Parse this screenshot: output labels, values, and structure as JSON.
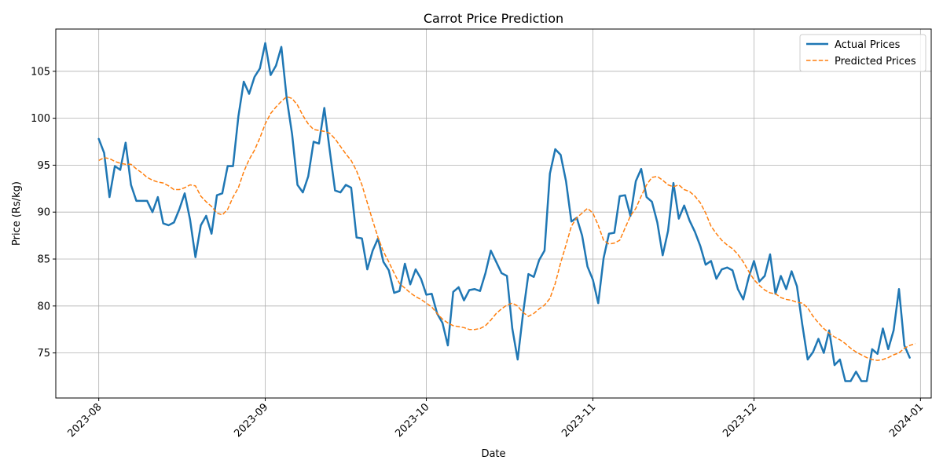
{
  "chart_data": {
    "type": "line",
    "title": "Carrot Price Prediction",
    "xlabel": "Date",
    "ylabel": "Price (Rs/kg)",
    "xlim": [
      "2023-07-24",
      "2024-01-03"
    ],
    "ylim": [
      70.2,
      109.5
    ],
    "grid": true,
    "legend_position": "top-right",
    "x_ticks": [
      "2023-08",
      "2023-09",
      "2023-10",
      "2023-11",
      "2023-12",
      "2024-01"
    ],
    "x_tick_dates": [
      "2023-08-01",
      "2023-09-01",
      "2023-10-01",
      "2023-11-01",
      "2023-12-01",
      "2024-01-01"
    ],
    "y_ticks": [
      75,
      80,
      85,
      90,
      95,
      100,
      105
    ],
    "start_date": "2023-08-01",
    "series": [
      {
        "name": "Actual Prices",
        "style": "solid",
        "color": "#1f77b4",
        "values": [
          97.8,
          96.3,
          91.6,
          94.9,
          94.5,
          97.4,
          92.9,
          91.2,
          91.2,
          91.2,
          90.0,
          91.6,
          88.8,
          88.6,
          88.9,
          90.3,
          92.0,
          89.2,
          85.2,
          88.6,
          89.6,
          87.7,
          91.8,
          92.0,
          94.9,
          94.9,
          100.2,
          103.9,
          102.6,
          104.4,
          105.3,
          108.0,
          104.6,
          105.6,
          107.6,
          102.1,
          98.3,
          92.9,
          92.1,
          93.8,
          97.5,
          97.3,
          101.1,
          96.6,
          92.3,
          92.1,
          92.9,
          92.6,
          87.3,
          87.2,
          83.9,
          85.9,
          87.2,
          84.7,
          83.8,
          81.4,
          81.6,
          84.5,
          82.3,
          83.9,
          82.9,
          81.2,
          81.3,
          79.2,
          78.2,
          75.8,
          81.5,
          82.0,
          80.6,
          81.7,
          81.8,
          81.6,
          83.5,
          85.9,
          84.7,
          83.5,
          83.2,
          77.6,
          74.3,
          79.2,
          83.4,
          83.1,
          84.9,
          85.9,
          94.1,
          96.7,
          96.1,
          93.3,
          89.0,
          89.4,
          87.5,
          84.2,
          82.8,
          80.3,
          85.1,
          87.7,
          87.8,
          91.7,
          91.8,
          89.6,
          93.3,
          94.6,
          91.6,
          91.1,
          88.9,
          85.4,
          88.0,
          93.1,
          89.3,
          90.7,
          89.1,
          87.9,
          86.4,
          84.4,
          84.8,
          82.9,
          83.9,
          84.1,
          83.8,
          81.8,
          80.7,
          83.0,
          84.8,
          82.6,
          83.2,
          85.5,
          81.3,
          83.2,
          81.8,
          83.7,
          82.1,
          78.0,
          74.3,
          75.1,
          76.5,
          75.0,
          77.4,
          73.7,
          74.3,
          72.0,
          72.0,
          73.0,
          72.0,
          72.0,
          75.4,
          74.9,
          77.6,
          75.4,
          77.4,
          81.8,
          75.8,
          74.5
        ]
      },
      {
        "name": "Predicted Prices",
        "style": "dashed",
        "color": "#ff7f0e",
        "values": [
          95.5,
          95.8,
          95.7,
          95.4,
          95.2,
          95.1,
          95.1,
          94.6,
          94.2,
          93.7,
          93.4,
          93.2,
          93.1,
          92.8,
          92.4,
          92.4,
          92.6,
          92.9,
          92.8,
          91.7,
          91.1,
          90.6,
          89.9,
          89.7,
          90.3,
          91.6,
          92.6,
          94.3,
          95.6,
          96.6,
          97.9,
          99.4,
          100.5,
          101.2,
          101.8,
          102.3,
          102.1,
          101.4,
          100.3,
          99.4,
          98.8,
          98.7,
          98.6,
          98.4,
          97.8,
          97.0,
          96.2,
          95.5,
          94.4,
          92.9,
          91.0,
          89.1,
          87.3,
          85.8,
          84.7,
          83.5,
          82.4,
          81.9,
          81.4,
          81.0,
          80.7,
          80.3,
          79.9,
          79.2,
          78.6,
          78.2,
          77.9,
          77.8,
          77.7,
          77.5,
          77.5,
          77.6,
          77.9,
          78.5,
          79.2,
          79.7,
          80.1,
          80.3,
          80.0,
          79.3,
          78.9,
          79.2,
          79.7,
          80.1,
          80.8,
          82.4,
          84.6,
          86.5,
          88.5,
          89.4,
          89.9,
          90.4,
          89.9,
          88.6,
          87.0,
          86.6,
          86.7,
          87.0,
          88.3,
          89.6,
          90.4,
          91.7,
          92.9,
          93.7,
          93.8,
          93.4,
          92.9,
          92.7,
          92.9,
          92.4,
          92.2,
          91.7,
          91.0,
          89.9,
          88.5,
          87.7,
          87.0,
          86.5,
          86.1,
          85.5,
          84.7,
          83.7,
          82.8,
          82.2,
          81.7,
          81.4,
          81.3,
          80.9,
          80.7,
          80.6,
          80.4,
          80.3,
          79.8,
          78.9,
          78.2,
          77.6,
          77.1,
          76.7,
          76.4,
          76.0,
          75.5,
          75.1,
          74.8,
          74.5,
          74.3,
          74.2,
          74.3,
          74.5,
          74.8,
          75.0,
          75.5,
          75.8,
          76.0
        ]
      }
    ]
  }
}
